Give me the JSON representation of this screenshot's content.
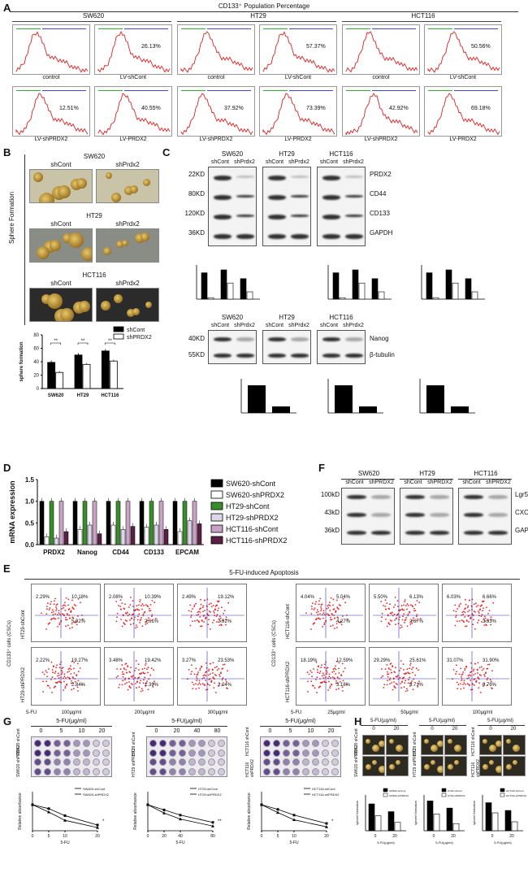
{
  "A": {
    "label": "A",
    "title": "CD133⁺ Population Percentage",
    "groups": [
      {
        "name": "SW620",
        "top": [
          {
            "label": "control",
            "pct": ""
          },
          {
            "label": "LV-shCont",
            "pct": "26.13%"
          }
        ],
        "bottom": [
          {
            "label": "LV-shPRDX2",
            "pct": "12.51%"
          },
          {
            "label": "LV-PRDX2",
            "pct": "40.55%"
          }
        ]
      },
      {
        "name": "HT29",
        "top": [
          {
            "label": "control",
            "pct": ""
          },
          {
            "label": "LV-shCont",
            "pct": "57.37%"
          }
        ],
        "bottom": [
          {
            "label": "LV-shPRDX2",
            "pct": "37.92%"
          },
          {
            "label": "LV-PRDX2",
            "pct": "73.39%"
          }
        ]
      },
      {
        "name": "HCT116",
        "top": [
          {
            "label": "control",
            "pct": ""
          },
          {
            "label": "LV-shCont",
            "pct": "50.56%"
          }
        ],
        "bottom": [
          {
            "label": "LV-shPRDX2",
            "pct": "42.92%"
          },
          {
            "label": "LV-PRDX2",
            "pct": "69.18%"
          }
        ]
      }
    ]
  },
  "B": {
    "label": "B",
    "side_label": "Sphere Formation",
    "rows": [
      {
        "cell": "SW620",
        "left": "shCont",
        "right": "shPrdx2"
      },
      {
        "cell": "HT29",
        "left": "shCont",
        "right": "shPrdx2"
      },
      {
        "cell": "HCT116",
        "left": "shCont",
        "right": "shPrdx2"
      }
    ],
    "chart_data": {
      "type": "bar",
      "categories": [
        "SW620",
        "HT29",
        "HCT116"
      ],
      "series": [
        {
          "name": "shCont",
          "values": [
            39,
            50,
            56
          ]
        },
        {
          "name": "shPRDX2",
          "values": [
            24,
            36,
            41
          ]
        }
      ],
      "errors": [
        [
          3,
          3,
          3
        ],
        [
          2,
          2,
          2
        ]
      ],
      "ylabel": "sphere formation",
      "ylim": [
        0,
        80
      ],
      "yticks": [
        0,
        20,
        40,
        60,
        80
      ],
      "significance": [
        "**",
        "**",
        "**"
      ],
      "legend": "top-right"
    }
  },
  "C": {
    "label": "C",
    "cells": [
      {
        "name": "SW620",
        "lanes": [
          "shCont",
          "shPrdx2"
        ]
      },
      {
        "name": "HT29",
        "lanes": [
          "shCont",
          "shPrdx2"
        ]
      },
      {
        "name": "HCT116",
        "lanes": [
          "shCont",
          "shPrdx2"
        ]
      }
    ],
    "sizes1": [
      "22KD",
      "80KD",
      "120KD",
      "36KD"
    ],
    "proteins1": [
      "PRDX2",
      "CD44",
      "CD133",
      "GAPDH"
    ],
    "sizes2": [
      "40KD",
      "55KD"
    ],
    "proteins2": [
      "Nanog",
      "β-tubulin"
    ]
  },
  "D": {
    "label": "D",
    "chart_data": {
      "type": "bar",
      "categories": [
        "PRDX2",
        "Nanog",
        "CD44",
        "CD133",
        "EPCAM"
      ],
      "series": [
        {
          "name": "SW620-shCont",
          "values": [
            1.0,
            1.0,
            1.0,
            1.0,
            1.0
          ],
          "color": "#000000"
        },
        {
          "name": "SW620-shPRDX2",
          "values": [
            0.18,
            0.35,
            0.45,
            0.4,
            0.3
          ],
          "color": "#ffffff"
        },
        {
          "name": "HT29-shCont",
          "values": [
            1.0,
            1.0,
            1.0,
            1.0,
            1.0
          ],
          "color": "#3a8d2c"
        },
        {
          "name": "HT29-shPRDX2",
          "values": [
            0.15,
            0.45,
            0.35,
            0.45,
            0.55
          ],
          "color": "#e0d6ea"
        },
        {
          "name": "HCT116-shCont",
          "values": [
            1.0,
            1.0,
            1.0,
            1.0,
            1.0
          ],
          "color": "#c9a3c6"
        },
        {
          "name": "HCT116-shPRDX2",
          "values": [
            0.3,
            0.25,
            0.42,
            0.35,
            0.48
          ],
          "color": "#5b1f45"
        }
      ],
      "ylabel": "mRNA expression",
      "ylim": [
        0,
        1.5
      ],
      "yticks": [
        "0.0",
        "0.5",
        "1.0",
        "1.5"
      ],
      "legend": "right"
    }
  },
  "F": {
    "label": "F",
    "cells": [
      {
        "name": "SW620",
        "lanes": [
          "shCont",
          "shPRDX2"
        ]
      },
      {
        "name": "HT29",
        "lanes": [
          "shCont",
          "shPRDX2"
        ]
      },
      {
        "name": "HCT116",
        "lanes": [
          "shCont",
          "shPRDX2"
        ]
      }
    ],
    "sizes": [
      "100kD",
      "43kD",
      "36kD"
    ],
    "proteins": [
      "Lgr5",
      "CXCR4",
      "GAPDH"
    ]
  },
  "E": {
    "label": "E",
    "title": "5-FU-induced Apoptosis",
    "left": {
      "side": "CD133⁺ cells (CSCs)",
      "rows": [
        "HT29-shCont",
        "HT29-shPRDX2"
      ],
      "start": "5-FU",
      "doses": [
        "100μg/ml",
        "200μg/ml",
        "300μg/ml"
      ],
      "plots": [
        [
          {
            "ul": "2.29%",
            "ur": "10.18%",
            "lr": "5.92%"
          },
          {
            "ul": "2.08%",
            "ur": "10.39%",
            "lr": "2.61%"
          },
          {
            "ul": "2.49%",
            "ur": "19.12%",
            "lr": "2.92%"
          }
        ],
        [
          {
            "ul": "2.22%",
            "ur": "19.27%",
            "lr": "2.84%"
          },
          {
            "ul": "3.48%",
            "ur": "19.42%",
            "lr": "1.39%"
          },
          {
            "ul": "3.27%",
            "ur": "23.53%",
            "lr": "2.04%"
          }
        ]
      ]
    },
    "right": {
      "side": "CD133⁺ cells (CSCs)",
      "rows": [
        "HCT116-shCont",
        "HCT116-shPRDX2"
      ],
      "start": "5-FU",
      "doses": [
        "25μg/ml",
        "50μg/ml",
        "100μg/ml"
      ],
      "plots": [
        [
          {
            "ul": "4.04%",
            "ur": "5.04%",
            "lr": "4.27%"
          },
          {
            "ul": "5.50%",
            "ur": "6.13%",
            "lr": "2.67%"
          },
          {
            "ul": "6.03%",
            "ur": "6.66%",
            "lr": "3.93%"
          }
        ],
        [
          {
            "ul": "18.19%",
            "ur": "12.59%",
            "lr": "3.18%"
          },
          {
            "ul": "29.29%",
            "ur": "25.61%",
            "lr": "5.71%"
          },
          {
            "ul": "31.07%",
            "ur": "31.90%",
            "lr": "6.76%"
          }
        ]
      ]
    }
  },
  "G": {
    "label": "G",
    "title": "5-FU(μg/ml)",
    "groups": [
      {
        "doses": [
          "0",
          "5",
          "10",
          "20"
        ],
        "rows": [
          "SW620 shCont",
          "SW620 shPRDX2"
        ]
      },
      {
        "doses": [
          "0",
          "20",
          "40",
          "80"
        ],
        "rows": [
          "HT29 shCont",
          "HT29 shPRDX2"
        ]
      },
      {
        "doses": [
          "0",
          "5",
          "10",
          "20"
        ],
        "rows": [
          "HCT116 shCont",
          "HCT116 shPRDX2"
        ]
      }
    ],
    "xlabel": "5-FU",
    "ylabel": "Relative absorbance",
    "chart_data": [
      {
        "type": "line",
        "x": [
          0,
          5,
          10,
          20
        ],
        "series": [
          {
            "name": "SW620-shCont",
            "values": [
              1.0,
              0.85,
              0.58,
              0.22
            ]
          },
          {
            "name": "SW620-shPRDX2",
            "values": [
              1.0,
              0.72,
              0.4,
              0.12
            ]
          }
        ],
        "ylim": [
          0,
          1.5
        ],
        "significance": "*"
      },
      {
        "type": "line",
        "x": [
          0,
          20,
          40,
          80
        ],
        "series": [
          {
            "name": "HT29-shCont",
            "values": [
              1.0,
              0.8,
              0.6,
              0.32
            ]
          },
          {
            "name": "HT29-shPRDX2",
            "values": [
              1.0,
              0.68,
              0.45,
              0.18
            ]
          }
        ],
        "ylim": [
          0,
          1.5
        ],
        "significance": "**"
      },
      {
        "type": "line",
        "x": [
          0,
          5,
          10,
          20
        ],
        "series": [
          {
            "name": "HCT116-shCont",
            "values": [
              1.0,
              0.82,
              0.6,
              0.28
            ]
          },
          {
            "name": "HCT116-shPRDX2",
            "values": [
              1.0,
              0.7,
              0.42,
              0.15
            ]
          }
        ],
        "ylim": [
          0,
          1.5
        ],
        "significance": "*"
      }
    ]
  },
  "H": {
    "label": "H",
    "title": "5-FU(μg/ml)",
    "doses": [
      "0",
      "20"
    ],
    "groups": [
      {
        "rows": [
          "SW620 shCont",
          "SW620 shPRDX2"
        ]
      },
      {
        "rows": [
          "HT29 shCont",
          "HT29 shPRDX2"
        ]
      },
      {
        "rows": [
          "HCT116 shCont",
          "HCT116 shPRDX2"
        ]
      }
    ],
    "ylabel": "sphere formation",
    "xlabel": "5-FU(μg/ml)",
    "chart_data": [
      {
        "type": "bar",
        "categories": [
          "0",
          "20"
        ],
        "series": [
          {
            "name": "SW620-shCont",
            "values": [
              45,
              32
            ]
          },
          {
            "name": "SW620-shPRDX2",
            "values": [
              25,
              14
            ]
          }
        ],
        "ylim": [
          0,
          60
        ]
      },
      {
        "type": "bar",
        "categories": [
          "0",
          "20"
        ],
        "series": [
          {
            "name": "HT29-shCont",
            "values": [
              50,
              38
            ]
          },
          {
            "name": "HT29-shPRDX2",
            "values": [
              28,
              12
            ]
          }
        ],
        "ylim": [
          0,
          60
        ]
      },
      {
        "type": "bar",
        "categories": [
          "0",
          "20"
        ],
        "series": [
          {
            "name": "HCT116-shCont",
            "values": [
              47,
              34
            ]
          },
          {
            "name": "HCT116-shPRDX2",
            "values": [
              30,
              15
            ]
          }
        ],
        "ylim": [
          0,
          60
        ]
      }
    ]
  }
}
